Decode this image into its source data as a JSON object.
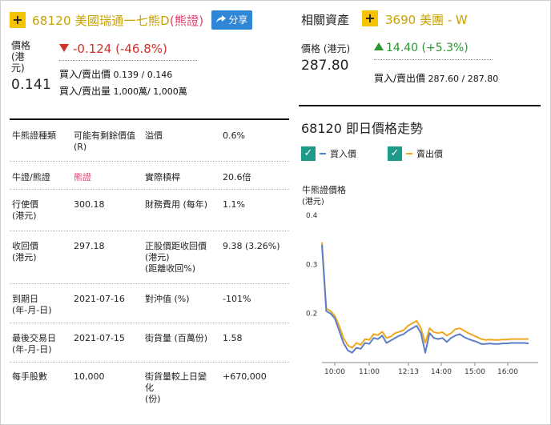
{
  "header": {
    "code_name": "68120 美國瑞通一七熊D",
    "type_label": "(熊證)",
    "share_label": "分享",
    "plus_symbol": "+"
  },
  "quote": {
    "price_label": "價格\n(港\n元)",
    "price": "0.141",
    "change": "-0.124 (-46.8%)",
    "bidask_label": "買入/賣出價",
    "bidask_value": "0.139 / 0.146",
    "bidask_vol_label": "買入/賣出量",
    "bidask_vol_value": "1,000萬/ 1,000萬"
  },
  "related": {
    "title": "相關資產",
    "name": "3690 美團 - W",
    "price_label": "價格 (港元)",
    "price": "287.80",
    "change": "14.40 (+5.3%)",
    "bidask_label": "買入/賣出價",
    "bidask_value": "287.60 / 287.80"
  },
  "attributes": [
    {
      "k1": "牛熊證種類",
      "v1": "可能有剩餘價值\n(R)",
      "k2": "溢價",
      "v2": "0.6%"
    },
    {
      "k1": "牛證/熊證",
      "v1": "熊證",
      "k2": "實際槓桿",
      "v2": "20.6倍"
    },
    {
      "k1": "行使價\n(港元)",
      "v1": "300.18",
      "k2": "財務費用 (每年)",
      "v2": "1.1%"
    },
    {
      "k1": "收回價\n(港元)",
      "v1": "297.18",
      "k2": "正股價距收回價\n(港元)\n(距離收回%)",
      "v2": "9.38 (3.26%)"
    },
    {
      "k1": "到期日\n(年-月-日)",
      "v1": "2021-07-16",
      "k2": "對沖值 (%)",
      "v2": "-101%"
    },
    {
      "k1": "最後交易日\n(年-月-日)",
      "v1": "2021-07-15",
      "k2": "街貨量 (百萬份)",
      "v2": "1.58"
    },
    {
      "k1": "每手股數",
      "v1": "10,000",
      "k2": "街貨量較上日變\n化\n(份)",
      "v2": "+670,000"
    }
  ],
  "chart_section": {
    "title": "68120 即日價格走勢",
    "legend_bid": "買入價",
    "legend_ask": "賣出價",
    "ylabel": "牛熊證價格",
    "yunit": "(港元)"
  },
  "colors": {
    "accent_yellow": "#f4c200",
    "bid_line": "#5b7fc4",
    "ask_line": "#f0a820",
    "down_red": "#d0302b",
    "up_green": "#2b9530",
    "check_teal": "#1d9a8a"
  },
  "chart_data": {
    "type": "line",
    "x_ticks": [
      "10:00",
      "11:00",
      "12:13",
      "14:00",
      "15:00",
      "16:00"
    ],
    "y_ticks": [
      "0.4",
      "0.3",
      "0.2"
    ],
    "ylim": [
      0.1,
      0.4
    ],
    "series": [
      {
        "name": "買入價",
        "values": [
          0.34,
          0.205,
          0.2,
          0.19,
          0.165,
          0.14,
          0.125,
          0.12,
          0.13,
          0.128,
          0.14,
          0.138,
          0.15,
          0.148,
          0.155,
          0.14,
          0.145,
          0.15,
          0.155,
          0.158,
          0.165,
          0.17,
          0.175,
          0.16,
          0.12,
          0.16,
          0.15,
          0.148,
          0.15,
          0.142,
          0.15,
          0.155,
          0.158,
          0.152,
          0.148,
          0.145,
          0.142,
          0.138,
          0.138,
          0.139,
          0.138,
          0.138,
          0.139,
          0.139,
          0.14,
          0.14,
          0.14,
          0.14,
          0.139
        ]
      },
      {
        "name": "賣出價",
        "values": [
          0.345,
          0.21,
          0.205,
          0.195,
          0.175,
          0.15,
          0.135,
          0.13,
          0.14,
          0.136,
          0.148,
          0.146,
          0.158,
          0.156,
          0.163,
          0.15,
          0.153,
          0.16,
          0.163,
          0.166,
          0.175,
          0.18,
          0.185,
          0.17,
          0.14,
          0.17,
          0.162,
          0.16,
          0.162,
          0.155,
          0.16,
          0.168,
          0.17,
          0.165,
          0.16,
          0.156,
          0.152,
          0.148,
          0.146,
          0.147,
          0.146,
          0.146,
          0.147,
          0.147,
          0.148,
          0.148,
          0.148,
          0.148,
          0.148
        ]
      }
    ]
  }
}
